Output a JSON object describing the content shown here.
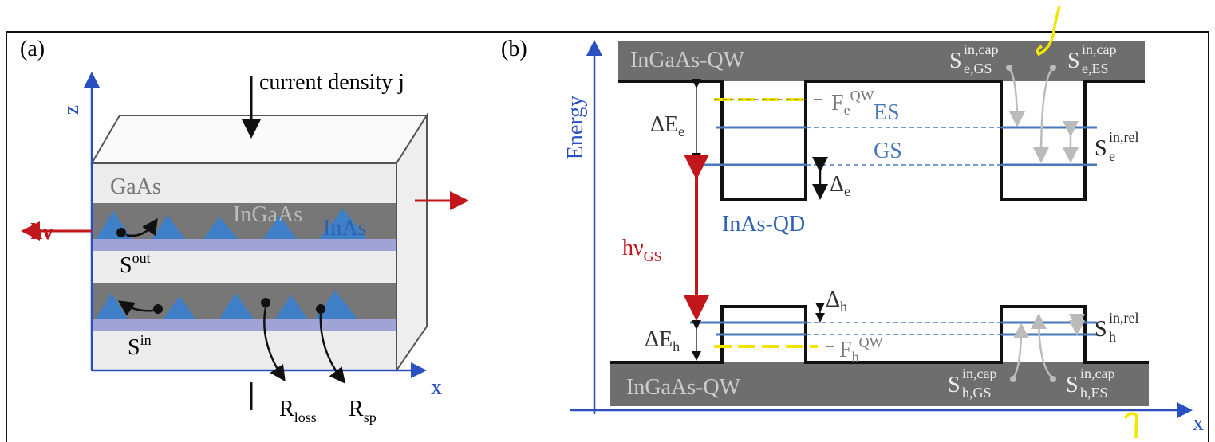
{
  "panel_a": {
    "label": "(a)",
    "current": "current density j",
    "axis_z": "z",
    "axis_x": "x",
    "layer_gaas": "GaAs",
    "layer_ingaas": "InGaAs",
    "dots": "InAs",
    "photon": "hν",
    "s_out": {
      "base": "S",
      "sup": "out"
    },
    "s_in": {
      "base": "S",
      "sup": "in"
    },
    "r_loss": {
      "base": "R",
      "sub": "loss"
    },
    "r_sp": {
      "base": "R",
      "sub": "sp"
    }
  },
  "panel_b": {
    "label": "(b)",
    "axis_y": "Energy",
    "axis_x": "x",
    "qw_top": "InGaAs-QW",
    "qw_bottom": "InGaAs-QW",
    "delta_e_e": {
      "base": "ΔE",
      "sub": "e"
    },
    "delta_e_h": {
      "base": "ΔE",
      "sub": "h"
    },
    "delta_e": {
      "base": "Δ",
      "sub": "e"
    },
    "delta_h": {
      "base": "Δ",
      "sub": "h"
    },
    "fermi_e": {
      "base": "F",
      "sub": "e",
      "sup": "QW"
    },
    "fermi_h": {
      "base": "F",
      "sub": "h",
      "sup": "QW"
    },
    "es": "ES",
    "gs": "GS",
    "qd": "InAs-QD",
    "photon_gs": {
      "base": "hν",
      "sub": "GS"
    },
    "s_e_gs": {
      "base": "S",
      "sup": "in,cap",
      "sub": "e,GS"
    },
    "s_e_es": {
      "base": "S",
      "sup": "in,cap",
      "sub": "e,ES"
    },
    "s_e_rel": {
      "base": "S",
      "sup": "in,rel",
      "sub": "e"
    },
    "s_h_rel": {
      "base": "S",
      "sup": "in,rel",
      "sub": "h"
    },
    "s_h_gs": {
      "base": "S",
      "sup": "in,cap",
      "sub": "h,GS"
    },
    "s_h_es": {
      "base": "S",
      "sup": "in,cap",
      "sub": "h,ES"
    }
  }
}
